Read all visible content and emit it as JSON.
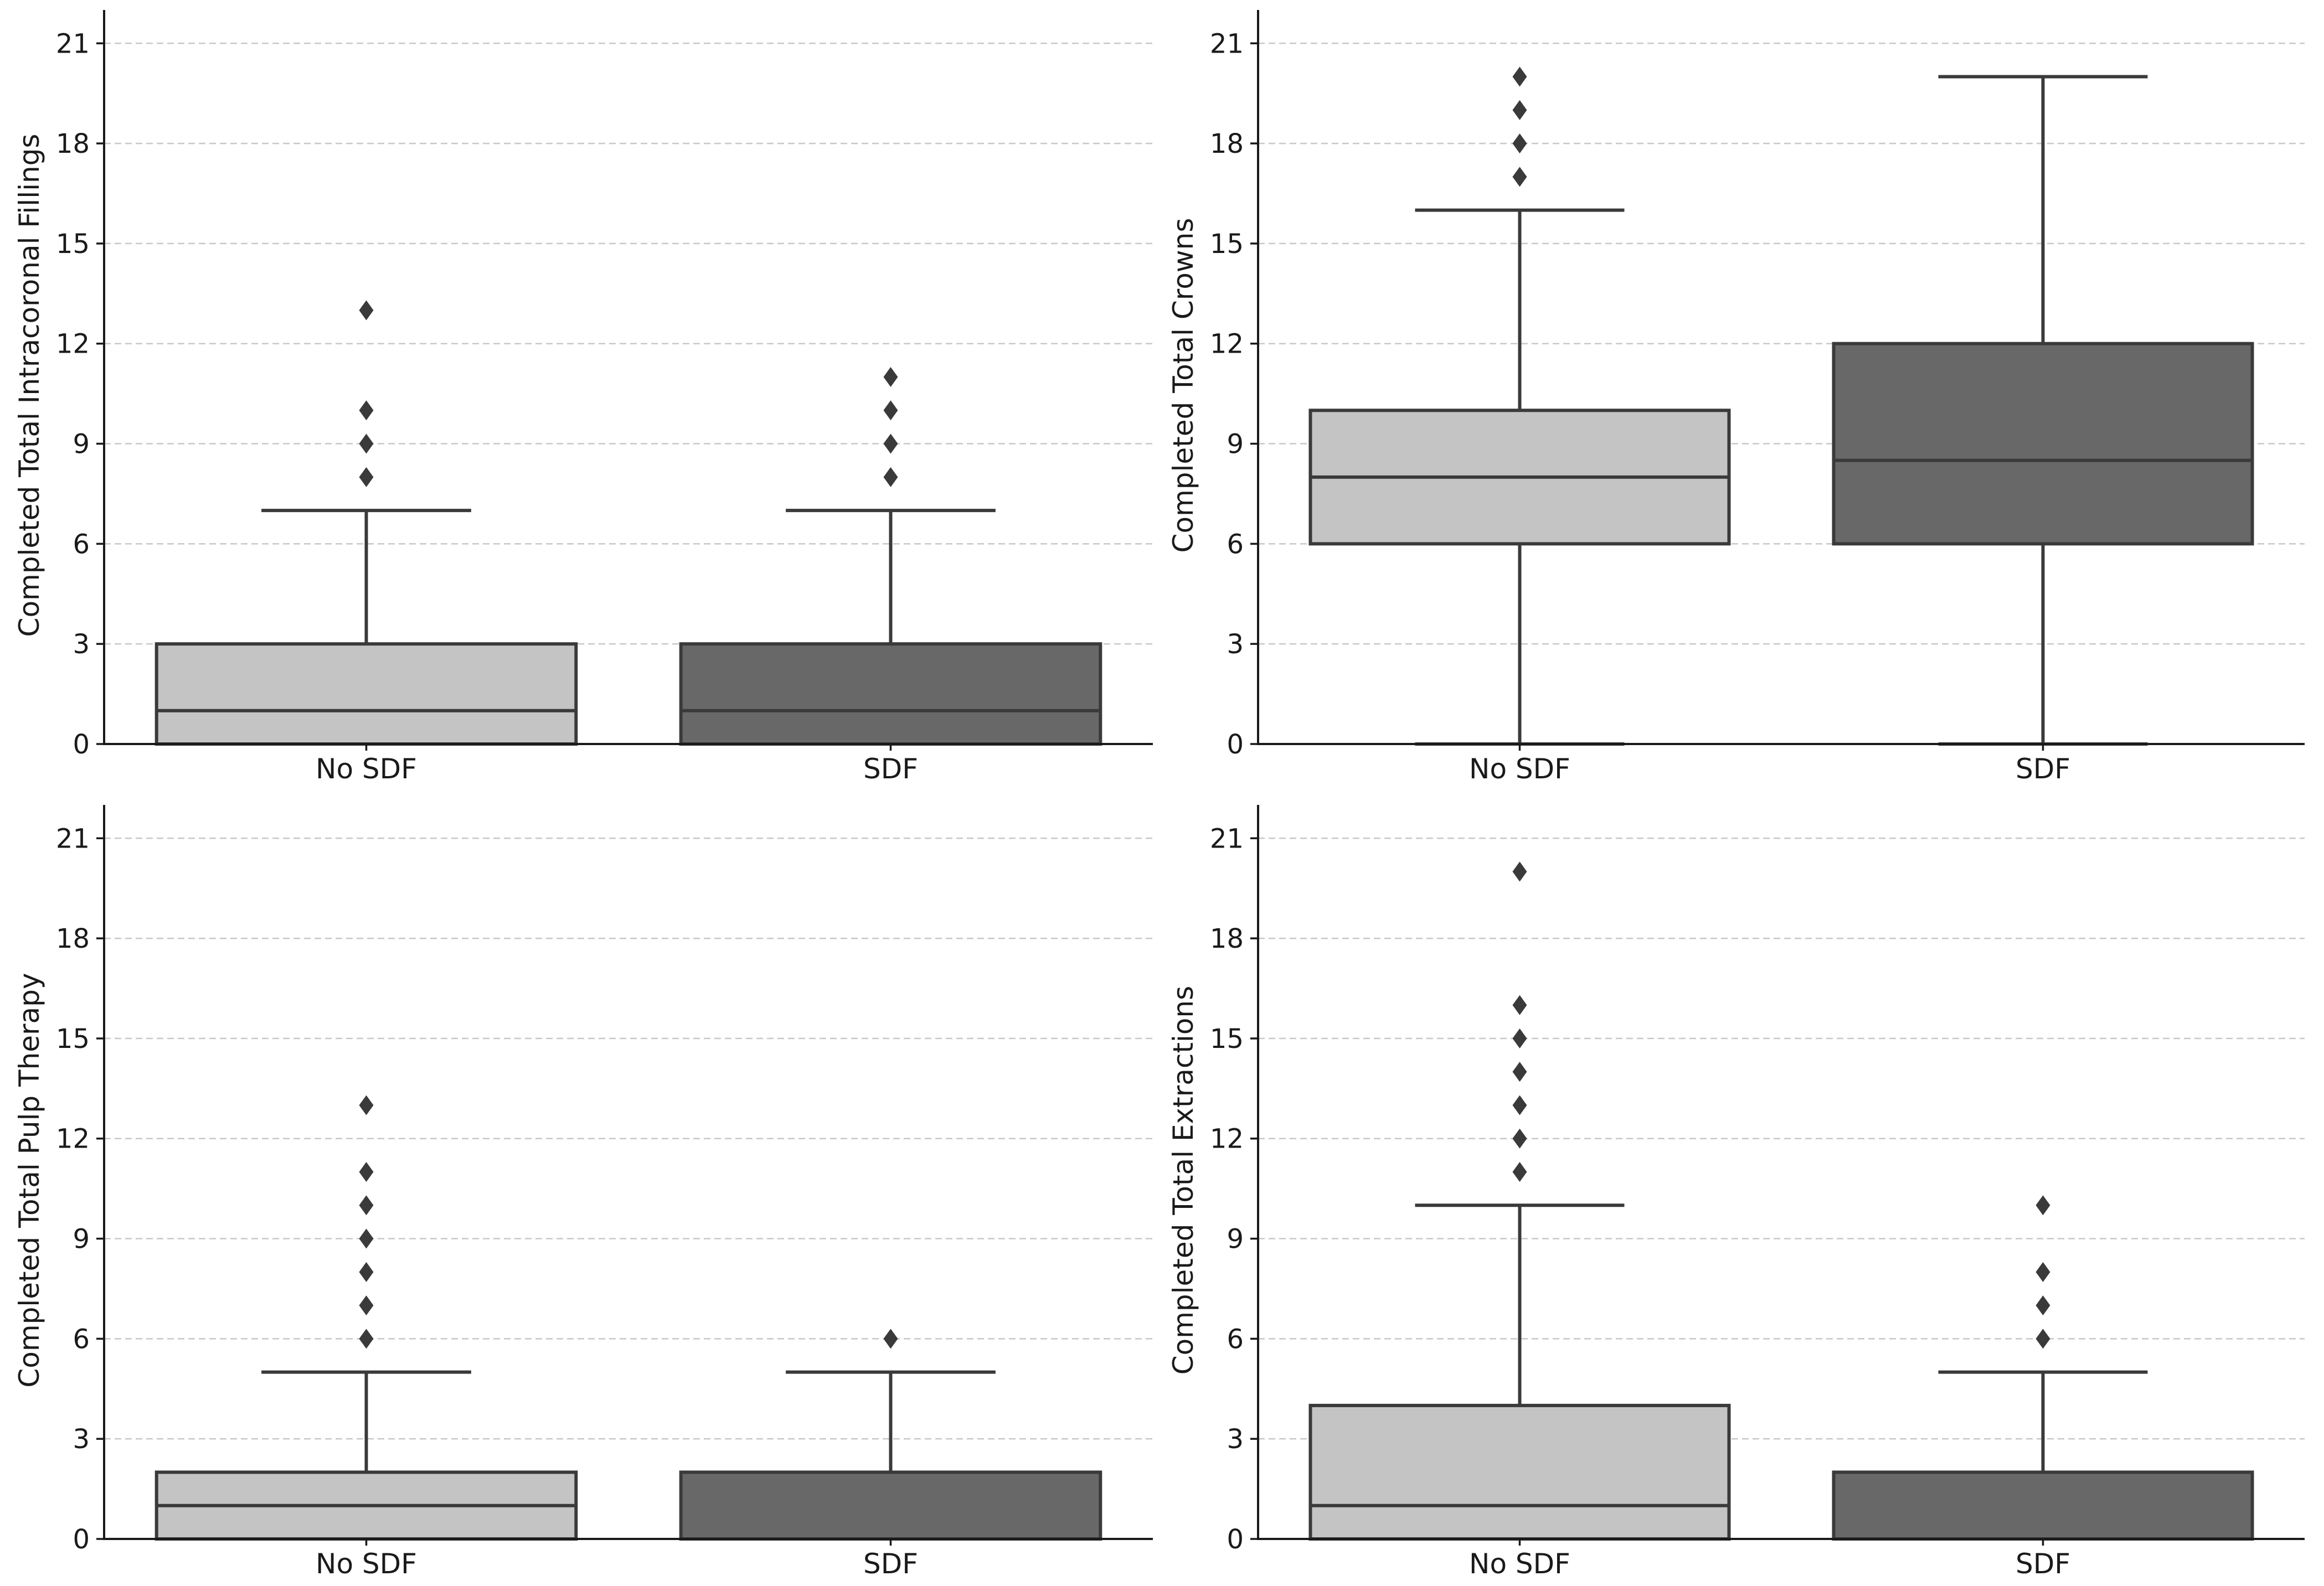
{
  "colors": {
    "no_sdf": "#c4c4c4",
    "sdf": "#686868",
    "edge": "#3a3a3a",
    "grid": "#c8c8c8"
  },
  "chart_data": [
    {
      "type": "box",
      "ylabel": "Completed Total Intracoronal Fillings",
      "categories": [
        "No SDF",
        "SDF"
      ],
      "ylim": [
        0,
        22
      ],
      "yticks": [
        0,
        3,
        6,
        9,
        12,
        15,
        18,
        21
      ],
      "grid": true,
      "boxes": [
        {
          "category": "No SDF",
          "whislo": 0,
          "q1": 0,
          "med": 1,
          "q3": 3,
          "whishi": 7,
          "fliers": [
            8,
            9,
            10,
            13
          ]
        },
        {
          "category": "SDF",
          "whislo": 0,
          "q1": 0,
          "med": 1,
          "q3": 3,
          "whishi": 7,
          "fliers": [
            8,
            9,
            10,
            11
          ]
        }
      ]
    },
    {
      "type": "box",
      "ylabel": "Completed Total Crowns",
      "categories": [
        "No SDF",
        "SDF"
      ],
      "ylim": [
        0,
        22
      ],
      "yticks": [
        0,
        3,
        6,
        9,
        12,
        15,
        18,
        21
      ],
      "grid": true,
      "boxes": [
        {
          "category": "No SDF",
          "whislo": 0,
          "q1": 6,
          "med": 8,
          "q3": 10,
          "whishi": 16,
          "fliers": [
            17,
            18,
            19,
            20
          ]
        },
        {
          "category": "SDF",
          "whislo": 0,
          "q1": 6,
          "med": 8.5,
          "q3": 12,
          "whishi": 20,
          "fliers": []
        }
      ]
    },
    {
      "type": "box",
      "ylabel": "Completed Total Pulp Therapy",
      "categories": [
        "No SDF",
        "SDF"
      ],
      "ylim": [
        0,
        22
      ],
      "yticks": [
        0,
        3,
        6,
        9,
        12,
        15,
        18,
        21
      ],
      "grid": true,
      "boxes": [
        {
          "category": "No SDF",
          "whislo": 0,
          "q1": 0,
          "med": 1,
          "q3": 2,
          "whishi": 5,
          "fliers": [
            6,
            7,
            8,
            9,
            10,
            11,
            13
          ]
        },
        {
          "category": "SDF",
          "whislo": 0,
          "q1": 0,
          "med": 0,
          "q3": 2,
          "whishi": 5,
          "fliers": [
            6
          ]
        }
      ]
    },
    {
      "type": "box",
      "ylabel": "Completed Total Extractions",
      "categories": [
        "No SDF",
        "SDF"
      ],
      "ylim": [
        0,
        22
      ],
      "yticks": [
        0,
        3,
        6,
        9,
        12,
        15,
        18,
        21
      ],
      "grid": true,
      "boxes": [
        {
          "category": "No SDF",
          "whislo": 0,
          "q1": 0,
          "med": 1,
          "q3": 4,
          "whishi": 10,
          "fliers": [
            11,
            12,
            13,
            14,
            15,
            16,
            20
          ]
        },
        {
          "category": "SDF",
          "whislo": 0,
          "q1": 0,
          "med": 0,
          "q3": 2,
          "whishi": 5,
          "fliers": [
            6,
            7,
            8,
            10
          ]
        }
      ]
    }
  ]
}
